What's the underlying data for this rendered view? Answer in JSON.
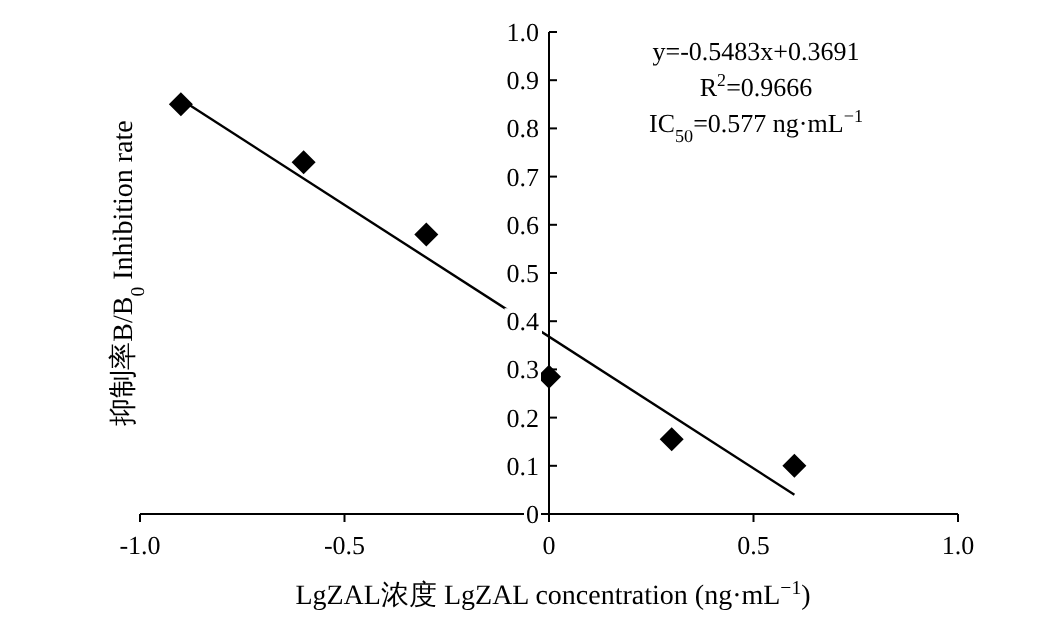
{
  "chart_data": {
    "type": "scatter",
    "xlabel": "LgZAL浓度 LgZAL concentration (ng·mL$^{−1}$)",
    "ylabel": "抑制率B/B$_{0}$ Inhibition rate",
    "annotations": [
      "y=-0.5483x+0.3691",
      "R$^{2}$=0.9666",
      "IC$_{50}$=0.577 ng·mL$^{−1}$"
    ],
    "series": [
      {
        "marker": "diamond",
        "color": "#000000",
        "x": [
          -0.9,
          -0.6,
          -0.3,
          0,
          0.3,
          0.6
        ],
        "values": [
          0.85,
          0.73,
          0.58,
          0.285,
          0.155,
          0.1
        ]
      },
      {
        "type": "line",
        "marker": "none",
        "color": "#000000",
        "x": [
          -0.9,
          0.6
        ],
        "values": [
          0.86,
          0.04
        ]
      }
    ],
    "xlim": [
      -1,
      1
    ],
    "ylim": [
      0,
      1
    ],
    "xticks": [
      {
        "value": -1,
        "label": "-1.0"
      },
      -0.5,
      0,
      0.5,
      {
        "value": 1,
        "label": "1.0"
      }
    ],
    "yticks": [
      0,
      0.1,
      0.2,
      0.3,
      0.4,
      0.5,
      0.6,
      0.7,
      0.8,
      0.9,
      {
        "value": 1,
        "label": "1.0"
      }
    ],
    "grid": false
  }
}
